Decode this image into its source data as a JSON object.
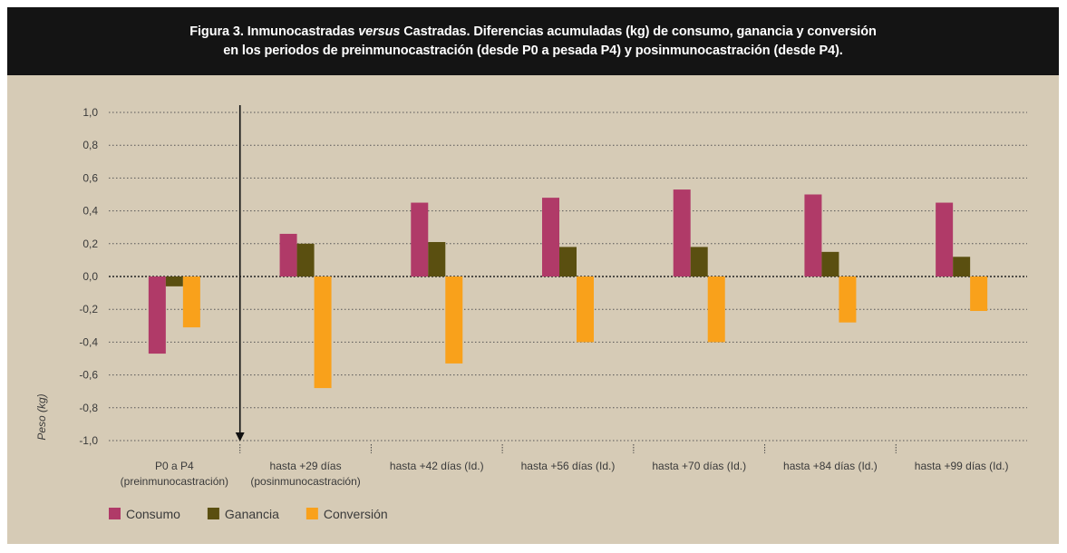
{
  "figure": {
    "title_prefix": "Figura 3. Inmunocastradas ",
    "title_italic": "versus",
    "title_suffix": " Castradas. Diferencias acumuladas (kg) de consumo, ganancia y conversión",
    "title_line2": "en los periodos de preinmunocastración (desde P0 a pesada P4) y posinmunocastración (desde P4)."
  },
  "chart_data": {
    "type": "bar",
    "ylabel": "Peso (kg)",
    "xlabel": "",
    "ylim": [
      -1.0,
      1.0
    ],
    "y_ticks": [
      "1,0",
      "0,8",
      "0,6",
      "0,4",
      "0,2",
      "0,0",
      "-0,2",
      "-0,4",
      "-0,6",
      "-0,8",
      "-1,0"
    ],
    "grid": true,
    "legend_position": "bottom-left",
    "categories": [
      [
        "P0 a P4",
        "(preinmunocastración)"
      ],
      [
        "hasta +29 días",
        "(posinmunocastración)"
      ],
      [
        "hasta +42 días (Id.)"
      ],
      [
        "hasta +56 días (Id.)"
      ],
      [
        "hasta +70 días (Id.)"
      ],
      [
        "hasta +84 días (Id.)"
      ],
      [
        "hasta +99 días (Id.)"
      ]
    ],
    "series": [
      {
        "name": "Consumo",
        "color": "#b03a68",
        "values": [
          -0.47,
          0.26,
          0.45,
          0.48,
          0.53,
          0.5,
          0.45
        ]
      },
      {
        "name": "Ganancia",
        "color": "#5a4f10",
        "values": [
          -0.06,
          0.2,
          0.21,
          0.18,
          0.18,
          0.15,
          0.12
        ]
      },
      {
        "name": "Conversión",
        "color": "#f9a11b",
        "values": [
          -0.31,
          -0.68,
          -0.53,
          -0.4,
          -0.4,
          -0.28,
          -0.21
        ]
      }
    ]
  }
}
